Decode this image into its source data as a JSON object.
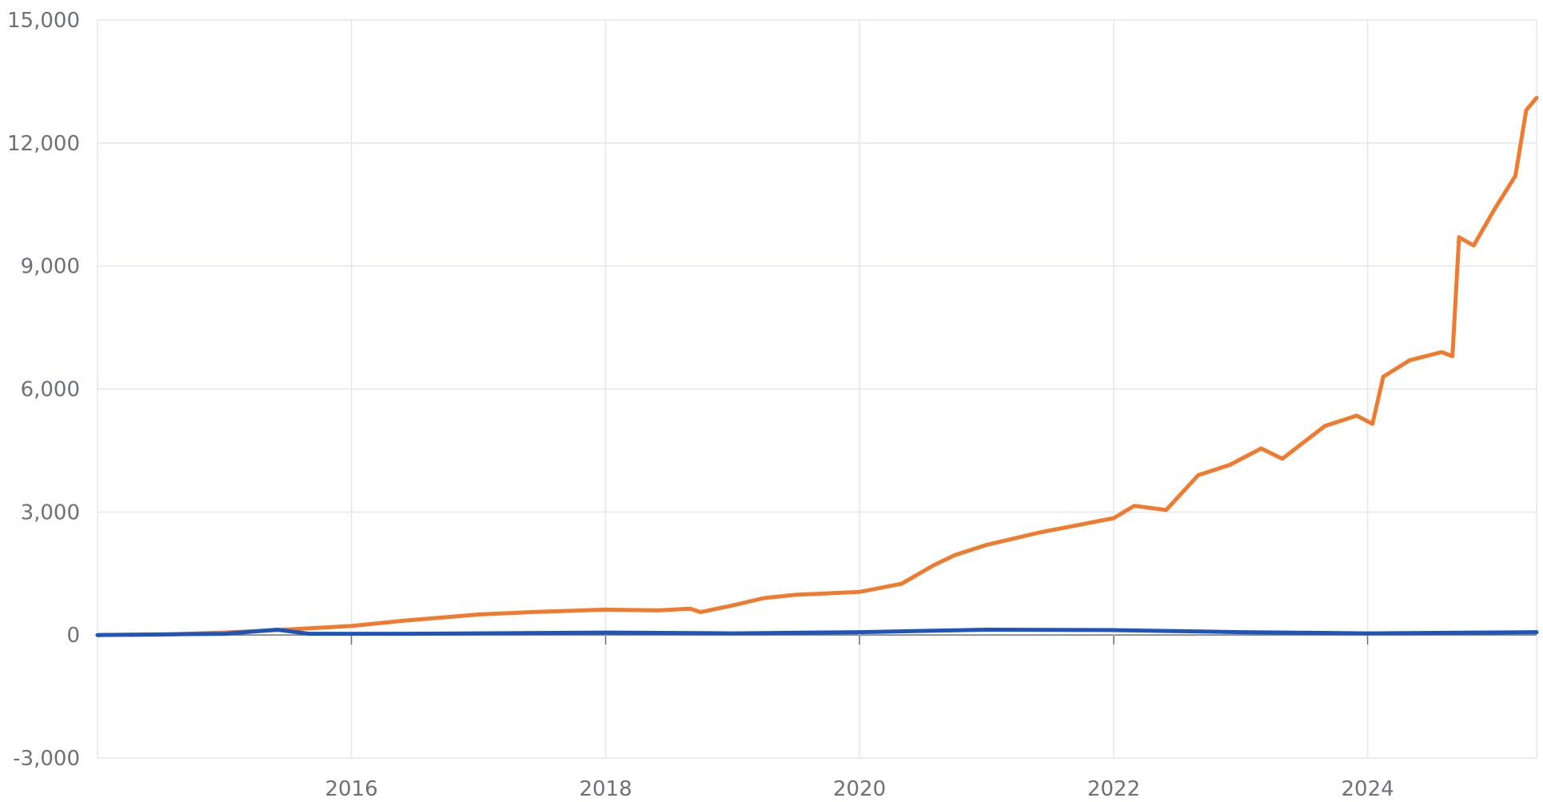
{
  "chart_data": {
    "type": "line",
    "title": "",
    "xlabel": "",
    "ylabel": "",
    "x_range": [
      "2014-01-01",
      "2025-05-01"
    ],
    "ylim": [
      -3000,
      15000
    ],
    "y_ticks": [
      -3000,
      0,
      3000,
      6000,
      9000,
      12000,
      15000
    ],
    "y_tick_labels": [
      "-3,000",
      "0",
      "3,000",
      "6,000",
      "9,000",
      "12,000",
      "15,000"
    ],
    "x_ticks": [
      "2016-01-01",
      "2018-01-01",
      "2020-01-01",
      "2022-01-01",
      "2024-01-01"
    ],
    "x_tick_labels": [
      "2016",
      "2018",
      "2020",
      "2022",
      "2024"
    ],
    "grid": true,
    "legend": "none",
    "series": [
      {
        "color": "#ee7b30",
        "points": [
          [
            "2014-01-01",
            0
          ],
          [
            "2014-07-01",
            10
          ],
          [
            "2015-01-01",
            60
          ],
          [
            "2015-06-01",
            120
          ],
          [
            "2016-01-01",
            220
          ],
          [
            "2016-06-01",
            350
          ],
          [
            "2017-01-01",
            500
          ],
          [
            "2017-06-01",
            560
          ],
          [
            "2018-01-01",
            620
          ],
          [
            "2018-06-01",
            600
          ],
          [
            "2018-09-01",
            640
          ],
          [
            "2018-10-01",
            560
          ],
          [
            "2019-01-01",
            720
          ],
          [
            "2019-04-01",
            900
          ],
          [
            "2019-07-01",
            980
          ],
          [
            "2020-01-01",
            1050
          ],
          [
            "2020-05-01",
            1250
          ],
          [
            "2020-08-01",
            1700
          ],
          [
            "2020-10-01",
            1950
          ],
          [
            "2021-01-01",
            2200
          ],
          [
            "2021-06-01",
            2500
          ],
          [
            "2021-09-01",
            2650
          ],
          [
            "2022-01-01",
            2850
          ],
          [
            "2022-03-01",
            3150
          ],
          [
            "2022-06-01",
            3050
          ],
          [
            "2022-09-01",
            3900
          ],
          [
            "2022-12-01",
            4150
          ],
          [
            "2023-03-01",
            4550
          ],
          [
            "2023-05-01",
            4300
          ],
          [
            "2023-07-01",
            4700
          ],
          [
            "2023-09-01",
            5100
          ],
          [
            "2023-12-01",
            5350
          ],
          [
            "2024-01-15",
            5150
          ],
          [
            "2024-02-15",
            6300
          ],
          [
            "2024-05-01",
            6700
          ],
          [
            "2024-08-01",
            6900
          ],
          [
            "2024-09-01",
            6800
          ],
          [
            "2024-09-20",
            9700
          ],
          [
            "2024-11-01",
            9500
          ],
          [
            "2025-01-01",
            10400
          ],
          [
            "2025-03-01",
            11200
          ],
          [
            "2025-04-01",
            12800
          ],
          [
            "2025-05-01",
            13100
          ]
        ]
      },
      {
        "color": "#1f55b8",
        "points": [
          [
            "2014-01-01",
            0
          ],
          [
            "2015-01-01",
            30
          ],
          [
            "2015-06-01",
            130
          ],
          [
            "2015-09-01",
            30
          ],
          [
            "2016-06-01",
            30
          ],
          [
            "2018-01-01",
            60
          ],
          [
            "2019-01-01",
            40
          ],
          [
            "2020-01-01",
            70
          ],
          [
            "2021-01-01",
            130
          ],
          [
            "2022-01-01",
            120
          ],
          [
            "2023-01-01",
            70
          ],
          [
            "2024-01-01",
            40
          ],
          [
            "2025-05-01",
            70
          ]
        ]
      }
    ]
  }
}
